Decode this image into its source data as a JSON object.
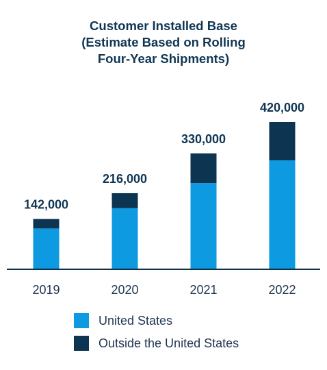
{
  "chart_data": {
    "type": "bar",
    "stacked": true,
    "title_lines": [
      "Customer Installed Base",
      "(Estimate Based on Rolling",
      "Four-Year Shipments)"
    ],
    "categories": [
      "2019",
      "2020",
      "2021",
      "2022"
    ],
    "totals": [
      142000,
      216000,
      330000,
      420000
    ],
    "total_labels": [
      "142,000",
      "216,000",
      "330,000",
      "420,000"
    ],
    "series": [
      {
        "name": "United States",
        "color": "#0d9ae1",
        "values": [
          115000,
          173000,
          245000,
          310000
        ]
      },
      {
        "name": "Outside the United States",
        "color": "#0d3552",
        "values": [
          27000,
          43000,
          85000,
          110000
        ]
      }
    ],
    "ylim": [
      0,
      450000
    ],
    "grid": false,
    "legend": "bottom"
  }
}
